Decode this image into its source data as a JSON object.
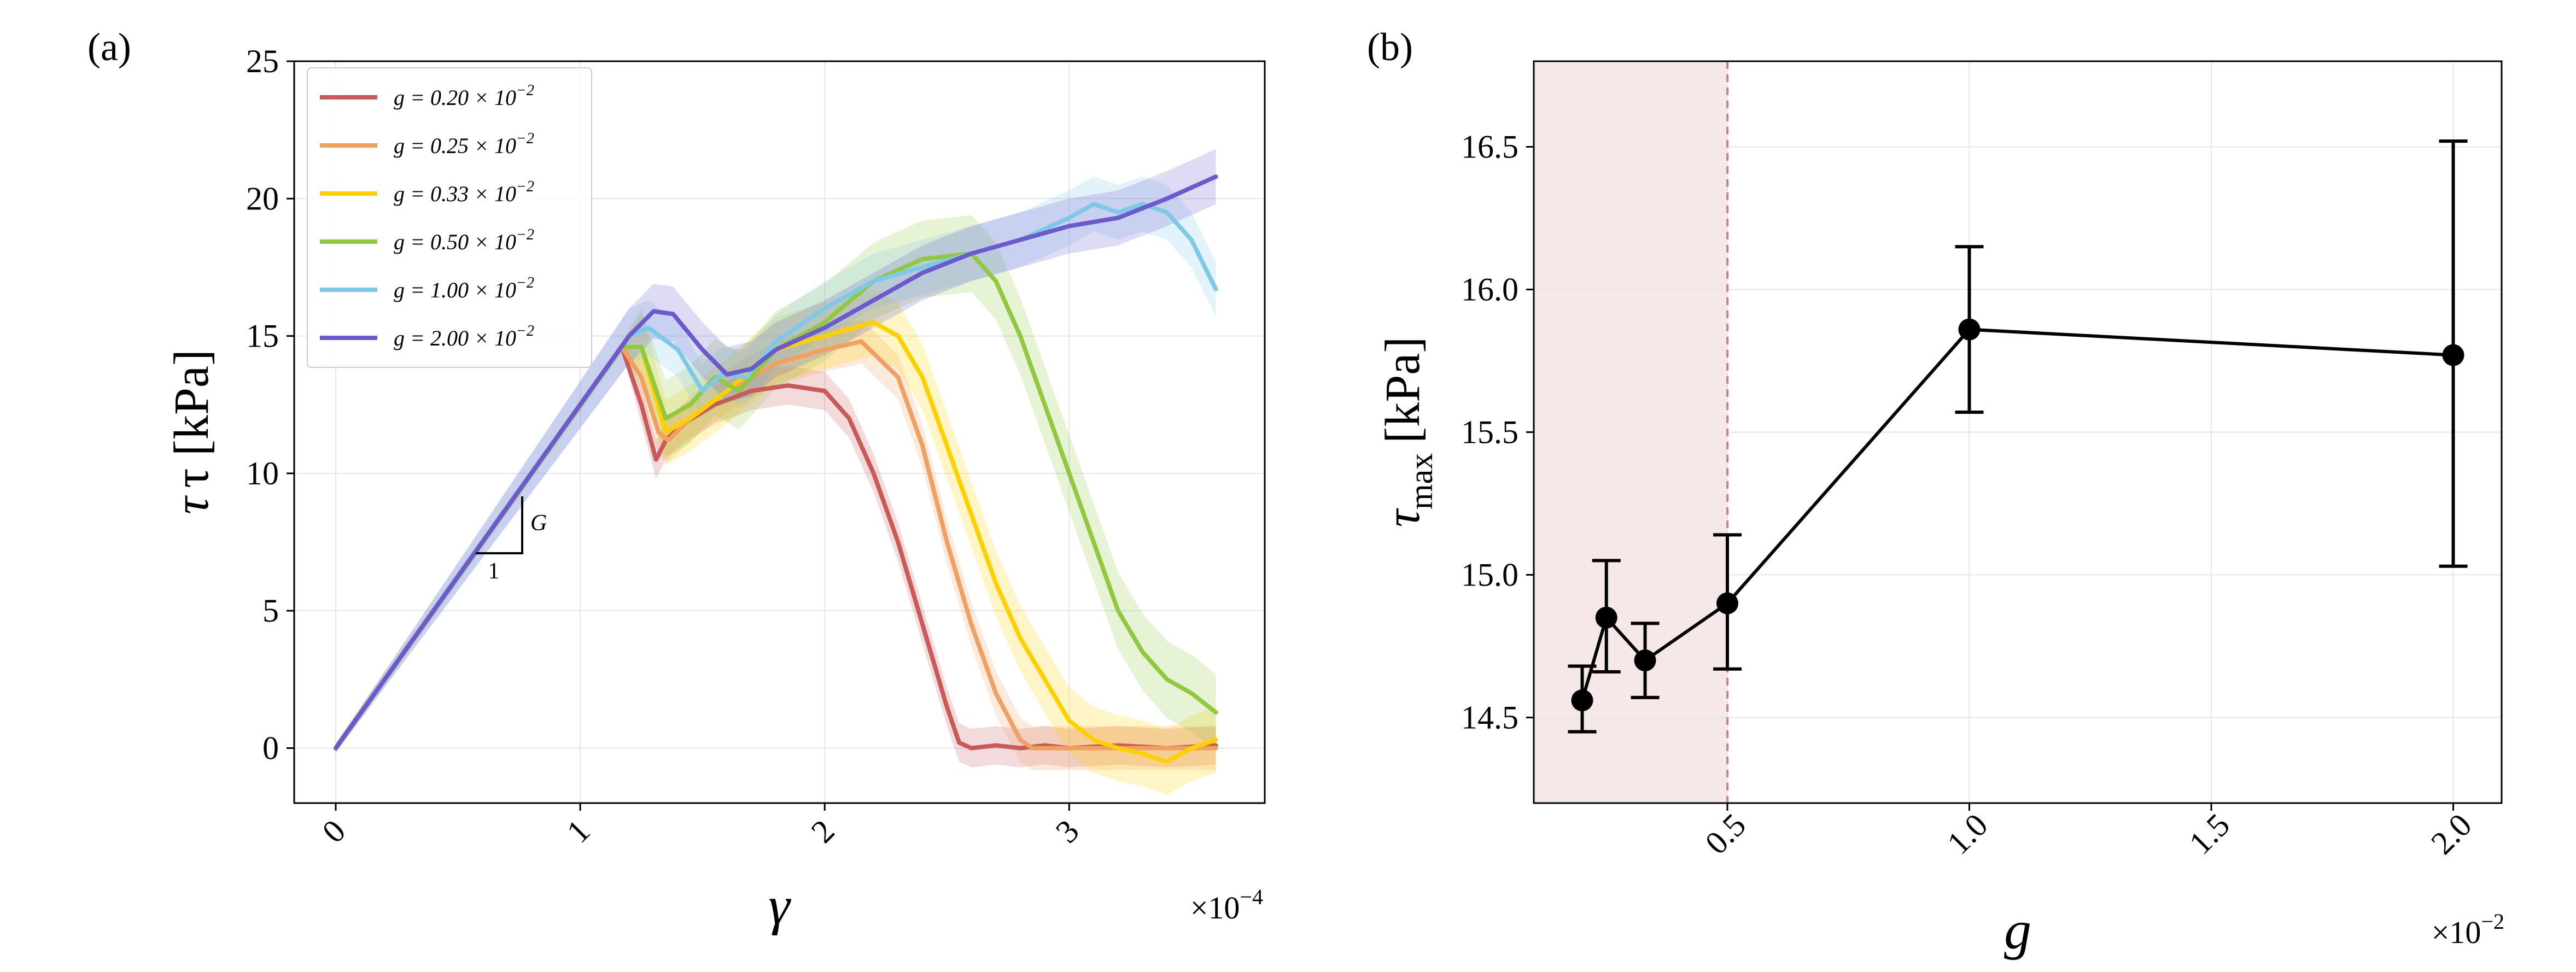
{
  "panels": {
    "a": {
      "label": "(a)"
    },
    "b": {
      "label": "(b)"
    }
  },
  "chart_data": [
    {
      "type": "line",
      "panel": "(a)",
      "xlabel": "γ",
      "ylabel": "τ [kPa]",
      "x_multiplier": "×10",
      "x_multiplier_exp": "−4",
      "xlim": [
        -0.17,
        3.8
      ],
      "ylim": [
        -2,
        25
      ],
      "xticks": [
        0,
        1,
        2,
        3
      ],
      "xtick_labels": [
        "0",
        "1",
        "2",
        "3"
      ],
      "yticks": [
        0,
        5,
        10,
        15,
        20,
        25
      ],
      "ytick_labels": [
        "0",
        "5",
        "10",
        "15",
        "20",
        "25"
      ],
      "grid": true,
      "legend_position": "upper-left",
      "slope_annotation": {
        "rise_label": "G",
        "run_label": "1"
      },
      "series": [
        {
          "name": "g = 0.20 × 10",
          "name_exp": "−2",
          "color": "#c85a5a",
          "band": 0.7,
          "x": [
            0,
            1.17,
            1.25,
            1.31,
            1.35,
            1.42,
            1.55,
            1.7,
            1.85,
            2.0,
            2.1,
            2.2,
            2.3,
            2.4,
            2.5,
            2.55,
            2.6,
            2.7,
            2.8,
            2.9,
            3.0,
            3.2,
            3.4,
            3.6
          ],
          "y": [
            0,
            14.6,
            12.5,
            10.5,
            11.2,
            11.8,
            12.5,
            13.0,
            13.2,
            13.0,
            12.0,
            10.0,
            7.5,
            4.5,
            1.5,
            0.2,
            0.0,
            0.1,
            0.0,
            0.1,
            0.0,
            0.1,
            0.0,
            0.1
          ]
        },
        {
          "name": "g = 0.25 × 10",
          "name_exp": "−2",
          "color": "#f0a060",
          "band": 0.8,
          "x": [
            0,
            1.17,
            1.25,
            1.32,
            1.36,
            1.45,
            1.6,
            1.8,
            2.0,
            2.15,
            2.3,
            2.4,
            2.5,
            2.6,
            2.7,
            2.8,
            2.85,
            3.0,
            3.2,
            3.4,
            3.6
          ],
          "y": [
            0,
            14.6,
            13.5,
            11.5,
            11.2,
            12.0,
            13.0,
            14.0,
            14.5,
            14.8,
            13.5,
            11.0,
            7.5,
            4.5,
            2.0,
            0.3,
            0.0,
            0.0,
            0.0,
            0.0,
            0.0
          ]
        },
        {
          "name": "g = 0.33 × 10",
          "name_exp": "−2",
          "color": "#ffd000",
          "band": 1.2,
          "x": [
            0,
            1.17,
            1.25,
            1.35,
            1.45,
            1.6,
            1.8,
            2.0,
            2.2,
            2.3,
            2.4,
            2.5,
            2.6,
            2.7,
            2.8,
            2.9,
            3.0,
            3.1,
            3.2,
            3.3,
            3.4,
            3.5,
            3.6
          ],
          "y": [
            0,
            14.6,
            14.6,
            11.5,
            12.0,
            13.0,
            14.5,
            15.0,
            15.5,
            15.0,
            13.5,
            11.0,
            8.5,
            6.0,
            4.0,
            2.5,
            1.0,
            0.3,
            0.0,
            -0.2,
            -0.5,
            0.0,
            0.3
          ]
        },
        {
          "name": "g = 0.50 × 10",
          "name_exp": "−2",
          "color": "#90c840",
          "band": 1.4,
          "x": [
            0,
            1.17,
            1.25,
            1.35,
            1.45,
            1.55,
            1.65,
            1.8,
            2.0,
            2.2,
            2.4,
            2.6,
            2.7,
            2.8,
            2.9,
            3.0,
            3.1,
            3.2,
            3.3,
            3.4,
            3.5,
            3.6
          ],
          "y": [
            0,
            14.6,
            14.6,
            12.0,
            12.5,
            13.5,
            13.0,
            14.5,
            15.5,
            17.0,
            17.8,
            18.0,
            17.0,
            15.0,
            12.5,
            10.0,
            7.5,
            5.0,
            3.5,
            2.5,
            2.0,
            1.3
          ]
        },
        {
          "name": "g = 1.00 × 10",
          "name_exp": "−2",
          "color": "#80c8e8",
          "band": 1.0,
          "x": [
            0,
            1.2,
            1.28,
            1.4,
            1.5,
            1.58,
            1.68,
            1.8,
            2.0,
            2.2,
            2.4,
            2.6,
            2.8,
            3.0,
            3.1,
            3.2,
            3.3,
            3.4,
            3.5,
            3.6
          ],
          "y": [
            0,
            15.0,
            15.3,
            14.5,
            13.0,
            13.6,
            13.5,
            14.8,
            16.0,
            17.0,
            17.5,
            18.0,
            18.5,
            19.3,
            19.8,
            19.5,
            19.8,
            19.5,
            18.5,
            16.7
          ]
        },
        {
          "name": "g = 2.00 × 10",
          "name_exp": "−2",
          "color": "#6a5acd",
          "band": 1.0,
          "x": [
            0,
            1.2,
            1.3,
            1.38,
            1.5,
            1.6,
            1.7,
            1.8,
            2.0,
            2.2,
            2.4,
            2.6,
            2.8,
            3.0,
            3.2,
            3.4,
            3.6
          ],
          "y": [
            0,
            15.0,
            15.9,
            15.8,
            14.5,
            13.6,
            13.8,
            14.5,
            15.3,
            16.3,
            17.3,
            18.0,
            18.5,
            19.0,
            19.3,
            20.0,
            20.8
          ]
        }
      ]
    },
    {
      "type": "scatter",
      "panel": "(b)",
      "xlabel": "g",
      "ylabel": "τ",
      "ylabel_sub": "max",
      "ylabel_unit": "[kPa]",
      "x_multiplier": "×10",
      "x_multiplier_exp": "−2",
      "xlim": [
        0.1,
        2.1
      ],
      "ylim": [
        14.2,
        16.8
      ],
      "xticks": [
        0.5,
        1.0,
        1.5,
        2.0
      ],
      "xtick_labels": [
        "0.5",
        "1.0",
        "1.5",
        "2.0"
      ],
      "yticks": [
        14.5,
        15.0,
        15.5,
        16.0,
        16.5
      ],
      "ytick_labels": [
        "14.5",
        "15.0",
        "15.5",
        "16.0",
        "16.5"
      ],
      "grid": true,
      "line_color": "#000000",
      "shaded_region": {
        "x_from": 0.1,
        "x_to": 0.5,
        "color": "#f6e8e8"
      },
      "dashed_line": {
        "x": 0.5,
        "color": "#d88080"
      },
      "points": [
        {
          "x": 0.2,
          "y": 14.56,
          "yerr_low": 14.45,
          "yerr_high": 14.68
        },
        {
          "x": 0.25,
          "y": 14.85,
          "yerr_low": 14.66,
          "yerr_high": 15.05
        },
        {
          "x": 0.33,
          "y": 14.7,
          "yerr_low": 14.57,
          "yerr_high": 14.83
        },
        {
          "x": 0.5,
          "y": 14.9,
          "yerr_low": 14.67,
          "yerr_high": 15.14
        },
        {
          "x": 1.0,
          "y": 15.86,
          "yerr_low": 15.57,
          "yerr_high": 16.15
        },
        {
          "x": 2.0,
          "y": 15.77,
          "yerr_low": 15.03,
          "yerr_high": 16.52
        }
      ]
    }
  ]
}
